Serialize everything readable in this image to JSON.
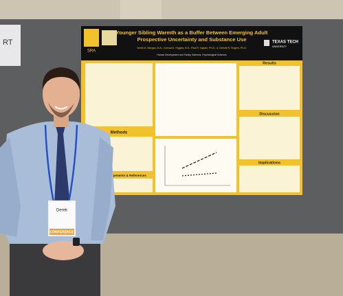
{
  "sign": {
    "text": "RT"
  },
  "poster": {
    "title_lines": [
      "Younger Sibling Warmth as a Buffer Between Emerging Adult",
      "Prospective Uncertainty and Substance Use"
    ],
    "authors": "Derek D. Morgan, M.A., Conrad D. Higgins, B.S., Paul R. Ingram, Ph.D., & Christie R. Rogers, Ph.D.",
    "affiliation": "Human Development and Family Sciences, Psychological Sciences",
    "logo_left": "SRA",
    "logo_right": "TEXAS TECH",
    "logo_right_sub": "UNIVERSITY",
    "sections": {
      "methods": "Methods",
      "acknowledgements": "Acknowledgements & References",
      "results": "Results",
      "discussion": "Discussion",
      "implications": "Implications"
    }
  },
  "badge": {
    "name": "Derek",
    "ribbon": "CONFERENCE"
  }
}
